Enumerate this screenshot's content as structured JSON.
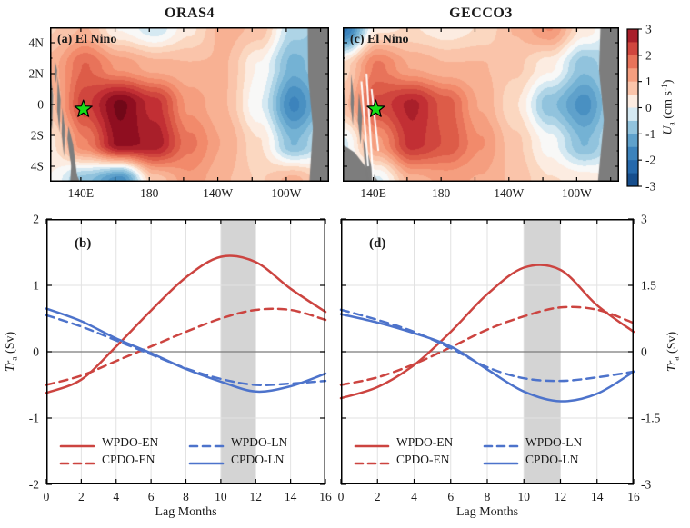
{
  "figure": {
    "colors": {
      "red": "#cc4440",
      "blue": "#4d73cb",
      "land": "#7d7d7d",
      "band": "#d4d4d4",
      "grid": "#e2e2e2",
      "zero_line": "#7a7a7a",
      "star": "#17dd17",
      "axis": "#000000"
    }
  },
  "legend": [
    {
      "label": "WPDO-EN",
      "color": "red",
      "dashed": false
    },
    {
      "label": "WPDO-LN",
      "color": "blue",
      "dashed": true
    },
    {
      "label": "CPDO-EN",
      "color": "red",
      "dashed": true
    },
    {
      "label": "CPDO-LN",
      "color": "blue",
      "dashed": false
    }
  ],
  "chart_data": [
    {
      "type": "heatmap",
      "id": "a",
      "title": "ORAS4",
      "panel_label": "(a) El Nino",
      "lon_range": [
        122,
        285
      ],
      "lat_range": [
        5,
        -5
      ],
      "lon_ticks": [
        140,
        160,
        180,
        200,
        220,
        240,
        260,
        280
      ],
      "lon_tick_labels": {
        "140": "140E",
        "180": "180",
        "220": "140W",
        "260": "100W"
      },
      "lat_ticks": [
        4,
        2,
        0,
        -2,
        -4
      ],
      "lat_tick_labels": [
        "4N",
        "2N",
        "0",
        "2S",
        "4S"
      ],
      "show_lat_labels": true,
      "value_range": [
        -3,
        3
      ],
      "grid_lats": [
        5,
        2.5,
        0,
        -2.5,
        -5
      ],
      "values": [
        [
          0.6,
          0.9,
          0.1,
          -0.3,
          0.3,
          1.0,
          0.8,
          -0.5,
          -0.8
        ],
        [
          1.0,
          1.9,
          1.3,
          1.0,
          0.9,
          0.9,
          0.1,
          -1.0,
          -0.5
        ],
        [
          0.8,
          2.3,
          3.2,
          2.5,
          1.3,
          0.9,
          -0.1,
          -1.7,
          -0.6
        ],
        [
          0.3,
          1.6,
          3.0,
          2.8,
          1.7,
          1.1,
          0.4,
          -0.9,
          -0.1
        ],
        [
          0.1,
          -0.8,
          -1.6,
          0.7,
          1.3,
          0.9,
          0.6,
          1.0,
          0.3
        ]
      ],
      "star": {
        "lon": 141.5,
        "lat": -0.3
      },
      "land": [
        [
          [
            122,
            2.2
          ],
          [
            123.8,
            0.6
          ],
          [
            123.2,
            -1.6
          ],
          [
            122,
            -1.0
          ]
        ],
        [
          [
            126.5,
            1.8
          ],
          [
            128.2,
            0.3
          ],
          [
            127.6,
            -1.8
          ],
          [
            126.2,
            -0.4
          ]
        ],
        [
          [
            129.2,
            -0.2
          ],
          [
            130.8,
            -1.6
          ],
          [
            130.2,
            -3.4
          ],
          [
            128.8,
            -1.9
          ]
        ],
        [
          [
            132.8,
            -1.4
          ],
          [
            135.5,
            -2.6
          ],
          [
            137.8,
            -4.6
          ],
          [
            136.2,
            -5
          ],
          [
            133.6,
            -3.4
          ],
          [
            132.2,
            -2.2
          ]
        ],
        [
          [
            134.5,
            -3.8
          ],
          [
            139.5,
            -5
          ],
          [
            133.8,
            -5
          ]
        ],
        [
          [
            125.0,
            2.8
          ],
          [
            126.2,
            2.2
          ],
          [
            125.6,
            1.4
          ],
          [
            124.6,
            1.9
          ]
        ],
        [
          [
            272.5,
            5
          ],
          [
            285,
            5
          ],
          [
            285,
            -5
          ],
          [
            273.5,
            -5
          ],
          [
            275.5,
            -1.5
          ],
          [
            272.8,
            1.8
          ]
        ]
      ],
      "gaps": []
    },
    {
      "type": "heatmap",
      "id": "c",
      "title": "GECCO3",
      "panel_label": "(c) El Nino",
      "lon_range": [
        122,
        285
      ],
      "lat_range": [
        5,
        -5
      ],
      "lon_ticks": [
        140,
        160,
        180,
        200,
        220,
        240,
        260,
        280
      ],
      "lon_tick_labels": {
        "140": "140E",
        "180": "180",
        "220": "140W",
        "260": "100W"
      },
      "lat_ticks": [
        4,
        2,
        0,
        -2,
        -4
      ],
      "lat_tick_labels": [
        "4N",
        "2N",
        "0",
        "2S",
        "4S"
      ],
      "show_lat_labels": false,
      "value_range": [
        -3,
        3
      ],
      "grid_lats": [
        5,
        2.5,
        0,
        -2.5,
        -5
      ],
      "values": [
        [
          -2.0,
          0.3,
          0.4,
          0.2,
          0.4,
          0.9,
          1.4,
          0.3,
          -0.4
        ],
        [
          0.5,
          1.7,
          1.1,
          0.9,
          0.9,
          0.7,
          0.2,
          -0.8,
          -0.3
        ],
        [
          0.8,
          2.2,
          2.7,
          2.0,
          1.1,
          0.4,
          -0.8,
          -1.5,
          -0.3
        ],
        [
          -0.2,
          1.3,
          2.5,
          2.1,
          1.4,
          0.7,
          0.0,
          -0.9,
          -0.2
        ],
        [
          -0.6,
          -0.2,
          1.0,
          1.2,
          1.1,
          0.8,
          0.4,
          0.3,
          0.1
        ]
      ],
      "star": {
        "lon": 141.5,
        "lat": -0.3
      },
      "land": [
        [
          [
            122,
            1.5
          ],
          [
            123.5,
            0.2
          ],
          [
            123,
            -2
          ],
          [
            122,
            -1.2
          ]
        ],
        [
          [
            127,
            2
          ],
          [
            128.6,
            0.4
          ],
          [
            128,
            -1.4
          ],
          [
            126.6,
            0
          ]
        ],
        [
          [
            131.5,
            0.8
          ],
          [
            133.4,
            -0.8
          ],
          [
            132.6,
            -2.6
          ],
          [
            130.9,
            -1
          ]
        ],
        [
          [
            122,
            -2.6
          ],
          [
            129,
            -3.1
          ],
          [
            136,
            -4.1
          ],
          [
            143,
            -5
          ],
          [
            122,
            -5
          ]
        ],
        [
          [
            134,
            -2.2
          ],
          [
            137.5,
            -3.4
          ],
          [
            140.5,
            -4.6
          ],
          [
            143,
            -5
          ],
          [
            137,
            -5
          ],
          [
            134.8,
            -3.6
          ]
        ],
        [
          [
            274,
            5
          ],
          [
            285,
            5
          ],
          [
            285,
            -5
          ],
          [
            272.5,
            -5
          ],
          [
            276,
            -1
          ],
          [
            273.2,
            2.2
          ]
        ]
      ],
      "gaps": [
        [
          [
            136,
            2
          ],
          [
            140,
            -5
          ]
        ],
        [
          [
            133,
            1.5
          ],
          [
            137,
            -4
          ]
        ],
        [
          [
            139,
            1
          ],
          [
            143,
            -3
          ]
        ]
      ]
    },
    {
      "type": "line",
      "id": "b",
      "panel_label": "(b)",
      "xlabel": "Lag Months",
      "ylabel": "*Tr*_{a} (Sv)",
      "x": [
        0,
        2,
        4,
        6,
        8,
        10,
        12,
        14,
        16
      ],
      "xlim": [
        0,
        16
      ],
      "ylim": [
        -2,
        2
      ],
      "yticks": [
        -2,
        -1,
        0,
        1,
        2
      ],
      "ytick_labels": [
        "-2",
        "-1",
        "0",
        "1",
        "2"
      ],
      "ytick_side": "left",
      "xticks": [
        0,
        2,
        4,
        6,
        8,
        10,
        12,
        14,
        16
      ],
      "shaded_band_x": [
        10,
        12
      ],
      "series": [
        {
          "name": "WPDO-EN",
          "color": "red",
          "dashed": false,
          "values": [
            -0.62,
            -0.42,
            0.08,
            0.62,
            1.12,
            1.43,
            1.35,
            0.95,
            0.6
          ]
        },
        {
          "name": "CPDO-EN",
          "color": "red",
          "dashed": true,
          "values": [
            -0.5,
            -0.36,
            -0.14,
            0.08,
            0.3,
            0.5,
            0.63,
            0.63,
            0.48
          ]
        },
        {
          "name": "WPDO-LN",
          "color": "blue",
          "dashed": true,
          "values": [
            0.55,
            0.38,
            0.17,
            -0.04,
            -0.25,
            -0.41,
            -0.5,
            -0.48,
            -0.44
          ]
        },
        {
          "name": "CPDO-LN",
          "color": "blue",
          "dashed": false,
          "values": [
            0.65,
            0.46,
            0.2,
            -0.02,
            -0.26,
            -0.45,
            -0.6,
            -0.52,
            -0.33
          ]
        }
      ]
    },
    {
      "type": "line",
      "id": "d",
      "panel_label": "(d)",
      "xlabel": "Lag Months",
      "ylabel": "*Tr*_{a} (Sv)",
      "x": [
        0,
        2,
        4,
        6,
        8,
        10,
        12,
        14,
        16
      ],
      "xlim": [
        0,
        16
      ],
      "ylim": [
        -3,
        3
      ],
      "yticks": [
        -3,
        -1.5,
        0,
        1.5,
        3
      ],
      "ytick_labels": [
        "-3",
        "-1.5",
        "0",
        "1.5",
        "3"
      ],
      "ytick_side": "right",
      "xticks": [
        0,
        2,
        4,
        6,
        8,
        10,
        12,
        14,
        16
      ],
      "shaded_band_x": [
        10,
        12
      ],
      "series": [
        {
          "name": "WPDO-EN",
          "color": "red",
          "dashed": false,
          "values": [
            -1.05,
            -0.8,
            -0.3,
            0.45,
            1.3,
            1.9,
            1.85,
            1.05,
            0.45
          ]
        },
        {
          "name": "CPDO-EN",
          "color": "red",
          "dashed": true,
          "values": [
            -0.75,
            -0.58,
            -0.28,
            0.1,
            0.5,
            0.8,
            1.0,
            0.95,
            0.65
          ]
        },
        {
          "name": "WPDO-LN",
          "color": "blue",
          "dashed": true,
          "values": [
            0.95,
            0.72,
            0.45,
            0.08,
            -0.35,
            -0.6,
            -0.66,
            -0.58,
            -0.45
          ]
        },
        {
          "name": "CPDO-LN",
          "color": "blue",
          "dashed": false,
          "values": [
            0.85,
            0.66,
            0.42,
            0.12,
            -0.4,
            -0.9,
            -1.12,
            -0.95,
            -0.45
          ]
        }
      ]
    },
    {
      "type": "colorbar",
      "id": "cbar",
      "label": "*U*_{a} (cm s^{-1})",
      "range": [
        -3,
        3
      ],
      "n_bands": 12,
      "ticks": [
        3,
        2,
        1,
        0,
        -1,
        -2,
        -3
      ]
    }
  ]
}
